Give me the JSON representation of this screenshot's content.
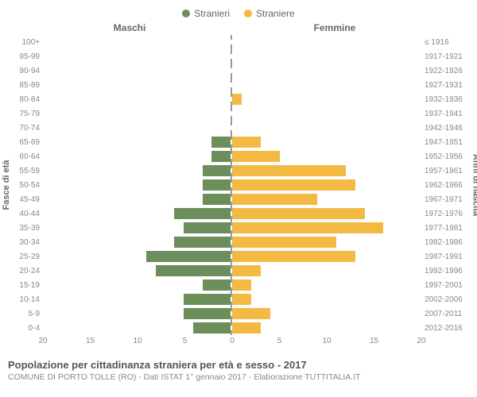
{
  "legend": {
    "male_label": "Stranieri",
    "female_label": "Straniere",
    "male_color": "#6b8e5a",
    "female_color": "#f4b942"
  },
  "headers": {
    "left": "Maschi",
    "right": "Femmine"
  },
  "y_labels": {
    "left": "Fasce di età",
    "right": "Anni di nascita"
  },
  "chart": {
    "type": "population-pyramid",
    "xmax": 20,
    "xtick_step": 5,
    "xticks": [
      0,
      5,
      10,
      15,
      20
    ],
    "bar_male_color": "#6b8e5a",
    "bar_female_color": "#f4b942",
    "background_color": "#ffffff",
    "center_line_color": "#999999",
    "rows": [
      {
        "age": "100+",
        "birth": "≤ 1916",
        "m": 0,
        "f": 0
      },
      {
        "age": "95-99",
        "birth": "1917-1921",
        "m": 0,
        "f": 0
      },
      {
        "age": "90-94",
        "birth": "1922-1926",
        "m": 0,
        "f": 0
      },
      {
        "age": "85-89",
        "birth": "1927-1931",
        "m": 0,
        "f": 0
      },
      {
        "age": "80-84",
        "birth": "1932-1936",
        "m": 0,
        "f": 1
      },
      {
        "age": "75-79",
        "birth": "1937-1941",
        "m": 0,
        "f": 0
      },
      {
        "age": "70-74",
        "birth": "1942-1946",
        "m": 0,
        "f": 0
      },
      {
        "age": "65-69",
        "birth": "1947-1951",
        "m": 2,
        "f": 3
      },
      {
        "age": "60-64",
        "birth": "1952-1956",
        "m": 2,
        "f": 5
      },
      {
        "age": "55-59",
        "birth": "1957-1961",
        "m": 3,
        "f": 12
      },
      {
        "age": "50-54",
        "birth": "1962-1966",
        "m": 3,
        "f": 13
      },
      {
        "age": "45-49",
        "birth": "1967-1971",
        "m": 3,
        "f": 9
      },
      {
        "age": "40-44",
        "birth": "1972-1976",
        "m": 6,
        "f": 14
      },
      {
        "age": "35-39",
        "birth": "1977-1981",
        "m": 5,
        "f": 16
      },
      {
        "age": "30-34",
        "birth": "1982-1986",
        "m": 6,
        "f": 11
      },
      {
        "age": "25-29",
        "birth": "1987-1991",
        "m": 9,
        "f": 13
      },
      {
        "age": "20-24",
        "birth": "1992-1996",
        "m": 8,
        "f": 3
      },
      {
        "age": "15-19",
        "birth": "1997-2001",
        "m": 3,
        "f": 2
      },
      {
        "age": "10-14",
        "birth": "2002-2006",
        "m": 5,
        "f": 2
      },
      {
        "age": "5-9",
        "birth": "2007-2011",
        "m": 5,
        "f": 4
      },
      {
        "age": "0-4",
        "birth": "2012-2016",
        "m": 4,
        "f": 3
      }
    ]
  },
  "footer": {
    "title": "Popolazione per cittadinanza straniera per età e sesso - 2017",
    "subtitle": "COMUNE DI PORTO TOLLE (RO) - Dati ISTAT 1° gennaio 2017 - Elaborazione TUTTITALIA.IT"
  }
}
